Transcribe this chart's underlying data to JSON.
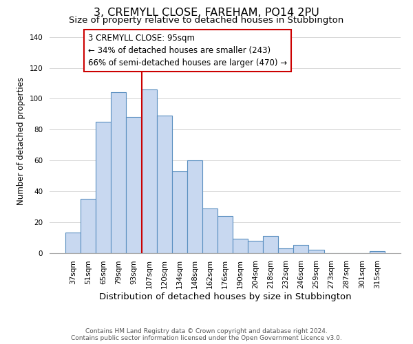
{
  "title": "3, CREMYLL CLOSE, FAREHAM, PO14 2PU",
  "subtitle": "Size of property relative to detached houses in Stubbington",
  "xlabel": "Distribution of detached houses by size in Stubbington",
  "ylabel": "Number of detached properties",
  "bar_labels": [
    "37sqm",
    "51sqm",
    "65sqm",
    "79sqm",
    "93sqm",
    "107sqm",
    "120sqm",
    "134sqm",
    "148sqm",
    "162sqm",
    "176sqm",
    "190sqm",
    "204sqm",
    "218sqm",
    "232sqm",
    "246sqm",
    "259sqm",
    "273sqm",
    "287sqm",
    "301sqm",
    "315sqm"
  ],
  "bar_values": [
    13,
    35,
    85,
    104,
    88,
    106,
    89,
    53,
    60,
    29,
    24,
    9,
    8,
    11,
    3,
    5,
    2,
    0,
    0,
    0,
    1
  ],
  "bar_color": "#c8d8f0",
  "bar_edgecolor": "#5a8fc0",
  "vline_x_index": 4,
  "vline_color": "#cc0000",
  "ylim": [
    0,
    145
  ],
  "annotation_box_text": "3 CREMYLL CLOSE: 95sqm\n← 34% of detached houses are smaller (243)\n66% of semi-detached houses are larger (470) →",
  "annotation_box_facecolor": "#ffffff",
  "annotation_box_edgecolor": "#cc0000",
  "annotation_fontsize": 8.5,
  "footer_line1": "Contains HM Land Registry data © Crown copyright and database right 2024.",
  "footer_line2": "Contains public sector information licensed under the Open Government Licence v3.0.",
  "title_fontsize": 11.5,
  "subtitle_fontsize": 9.5,
  "xlabel_fontsize": 9.5,
  "ylabel_fontsize": 8.5,
  "tick_fontsize": 7.5,
  "footer_fontsize": 6.5,
  "yticks": [
    0,
    20,
    40,
    60,
    80,
    100,
    120,
    140
  ]
}
